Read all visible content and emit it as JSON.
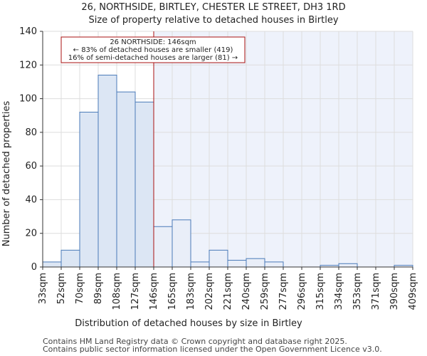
{
  "chart_data": {
    "type": "bar",
    "title": "26, NORTHSIDE, BIRTLEY, CHESTER LE STREET, DH3 1RD",
    "subtitle": "Size of property relative to detached houses in Birtley",
    "xlabel": "Distribution of detached houses by size in Birtley",
    "ylabel": "Number of detached properties",
    "ylim": [
      0,
      140
    ],
    "yticks": [
      0,
      20,
      40,
      60,
      80,
      100,
      120,
      140
    ],
    "bin_edges": [
      "33sqm",
      "52sqm",
      "70sqm",
      "89sqm",
      "108sqm",
      "127sqm",
      "146sqm",
      "165sqm",
      "183sqm",
      "202sqm",
      "221sqm",
      "240sqm",
      "259sqm",
      "277sqm",
      "296sqm",
      "315sqm",
      "334sqm",
      "353sqm",
      "371sqm",
      "390sqm",
      "409sqm"
    ],
    "values": [
      3,
      10,
      92,
      114,
      104,
      98,
      24,
      28,
      3,
      10,
      4,
      5,
      3,
      0,
      0,
      1,
      2,
      0,
      0,
      1
    ],
    "marker_bin_edge_index": 6,
    "annotation": {
      "line1": "26 NORTHSIDE: 146sqm",
      "line2": "← 83% of detached houses are smaller (419)",
      "line3": "16% of semi-detached houses are larger (81) →"
    },
    "grid": true,
    "colors": {
      "bar_fill_left": "#dce6f4",
      "bar_fill_right": "#e9eef8",
      "bar_edge": "#4a7ab8",
      "marker_line": "#aa1111",
      "shade_right": "#eef2fb"
    }
  },
  "footer": {
    "line1": "Contains HM Land Registry data © Crown copyright and database right 2025.",
    "line2": "Contains public sector information licensed under the Open Government Licence v3.0."
  }
}
